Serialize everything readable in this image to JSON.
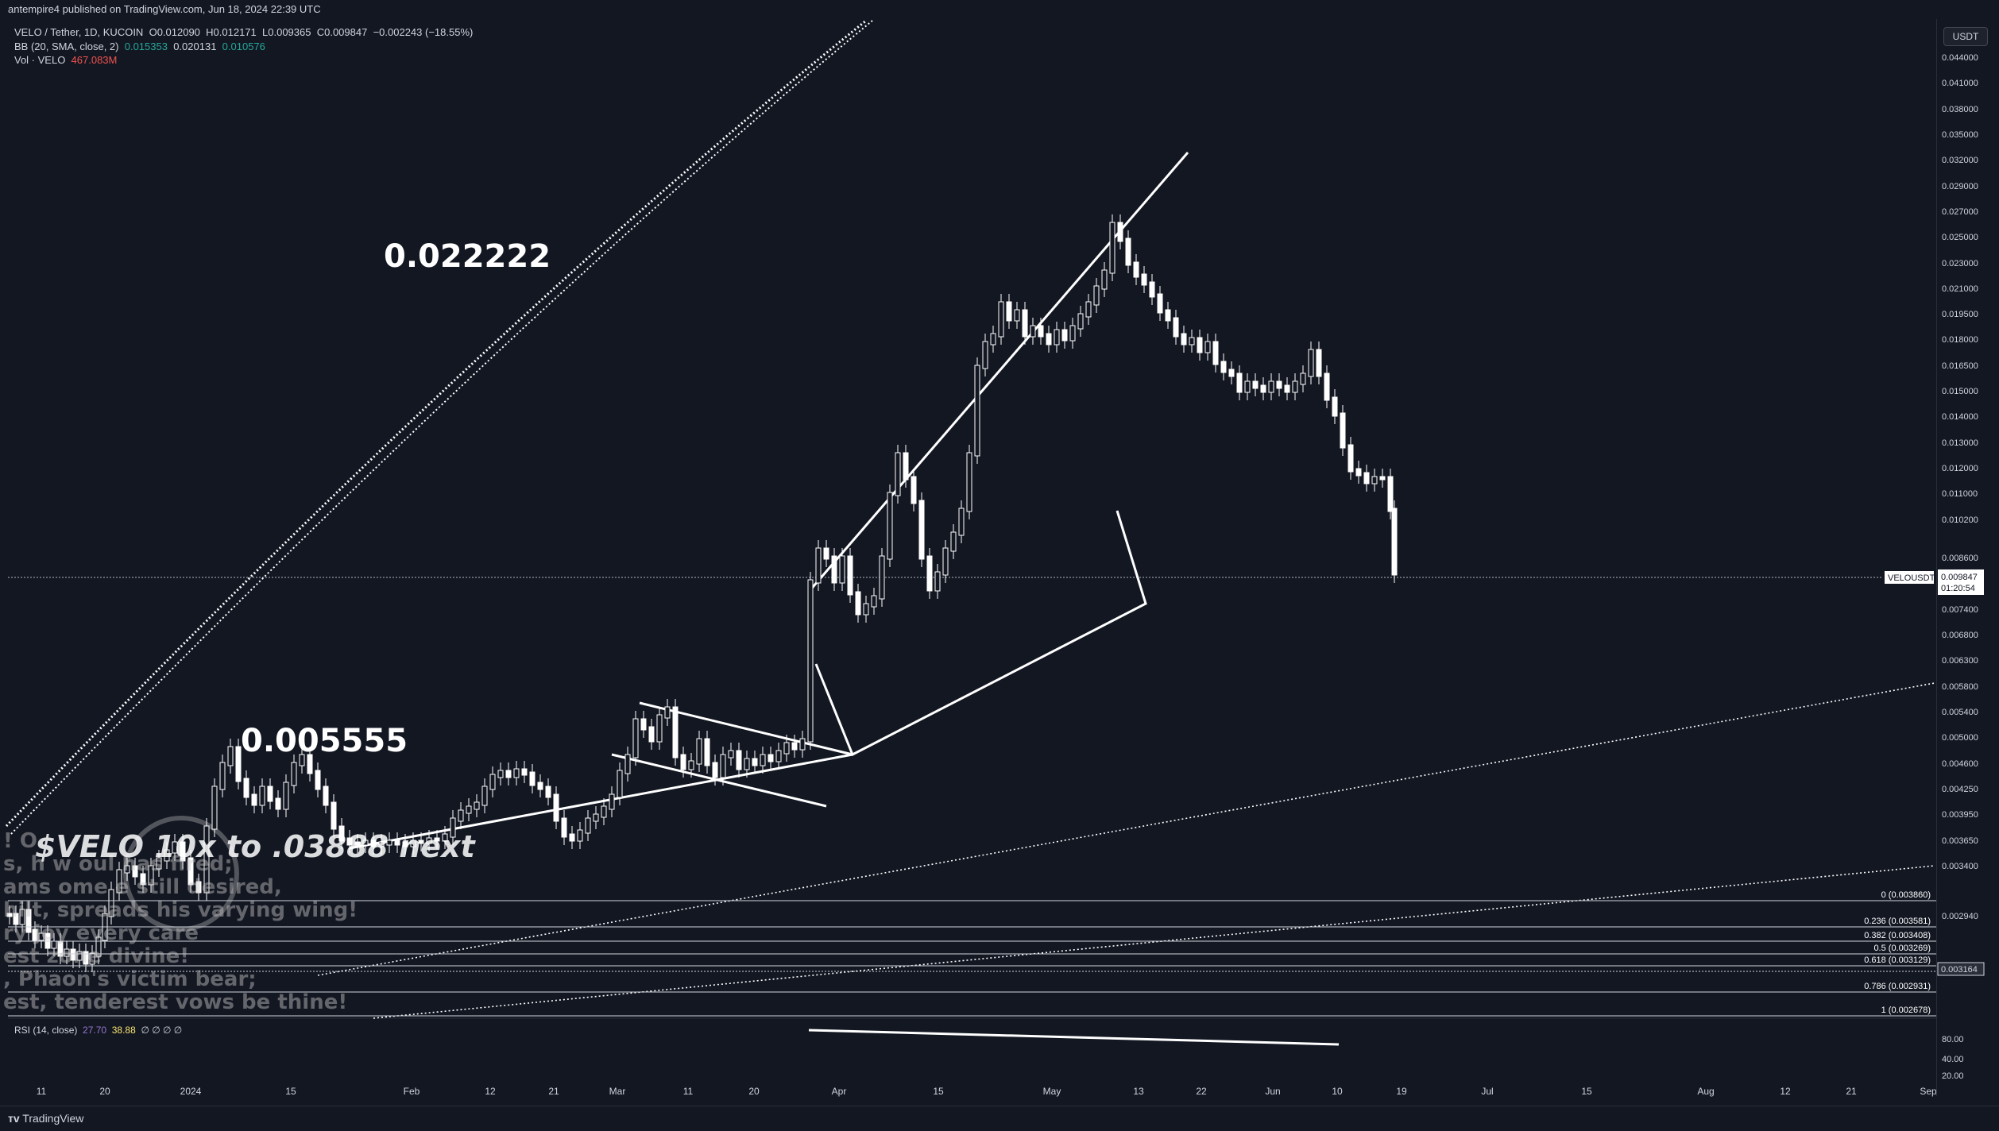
{
  "header": {
    "publisher": "antempire4 published on TradingView.com, Jun 18, 2024 22:39 UTC"
  },
  "legend": {
    "symbol": "VELO / Tether, 1D, KUCOIN",
    "o_label": "O",
    "o_value": "0.012090",
    "h_label": "H",
    "h_value": "0.012171",
    "l_label": "L",
    "l_value": "0.009365",
    "c_label": "C",
    "c_value": "0.009847",
    "change": "−0.002243 (−18.55%)",
    "bb_label": "BB (20, SMA, close, 2)",
    "bb_v1": "0.015353",
    "bb_v2": "0.020131",
    "bb_v3": "0.010576",
    "vol_label": "Vol · VELO",
    "vol_value": "467.083M"
  },
  "axis": {
    "currency": "USDT",
    "price_labels": [
      "0.044000",
      "0.041000",
      "0.038000",
      "0.035000",
      "0.032000",
      "0.029000",
      "0.027000",
      "0.025000",
      "0.023000",
      "0.021000",
      "0.019500",
      "0.018000",
      "0.016500",
      "0.015000",
      "0.014000",
      "0.013000",
      "0.012000",
      "0.011000",
      "0.010200",
      "0.008600",
      "0.008000",
      "0.007400",
      "0.006800",
      "0.006300",
      "0.005800",
      "0.005400",
      "0.005000",
      "0.004600",
      "0.004250",
      "0.003950",
      "0.003650",
      "0.003400",
      "0.002940"
    ],
    "symbol_tag": "VELOUSDT",
    "last_price": "0.009847",
    "countdown": "01:20:54",
    "fib_price_tag": "0.003164",
    "rsi_levels": [
      "80.00",
      "40.00",
      "20.00"
    ],
    "time_labels": [
      "11",
      "20",
      "2024",
      "15",
      "Feb",
      "12",
      "21",
      "Mar",
      "11",
      "20",
      "Apr",
      "15",
      "May",
      "13",
      "22",
      "Jun",
      "10",
      "19",
      "Jul",
      "15",
      "Aug",
      "12",
      "21",
      "Sep"
    ]
  },
  "fib_levels": [
    {
      "label": "0 (0.003860)"
    },
    {
      "label": "0.236 (0.003581)"
    },
    {
      "label": "0.382 (0.003408)"
    },
    {
      "label": "0.5 (0.003269)"
    },
    {
      "label": "0.618 (0.003129)"
    },
    {
      "label": "0.786 (0.002931)"
    },
    {
      "label": "1 (0.002678)"
    }
  ],
  "annotations": {
    "label_top": "0.022222",
    "label_mid": "0.005555",
    "title": "$VELO 10x to .03888 next",
    "poem_lines": [
      "! O",
      "s, h  w      oul has fired;",
      "ams  ome     e still desired,",
      "hilt, spreads his varying wing!",
      "ry joy  every care",
      "est     zone divine!",
      ", Phaon's victim bear;",
      "est, tenderest vows be thine!"
    ]
  },
  "rsi": {
    "label": "RSI (14, close)",
    "v1": "27.70",
    "v2": "38.88",
    "v3": "∅ ∅ ∅ ∅"
  },
  "footer": {
    "brand": "TradingView"
  },
  "chart_data": {
    "type": "candlestick",
    "symbol": "VELO / Tether, 1D, KUCOIN",
    "x_range": [
      "Dec 2023",
      "Sep 2024"
    ],
    "y_range": [
      0.0027,
      0.045
    ],
    "last_close": 0.009847
  }
}
